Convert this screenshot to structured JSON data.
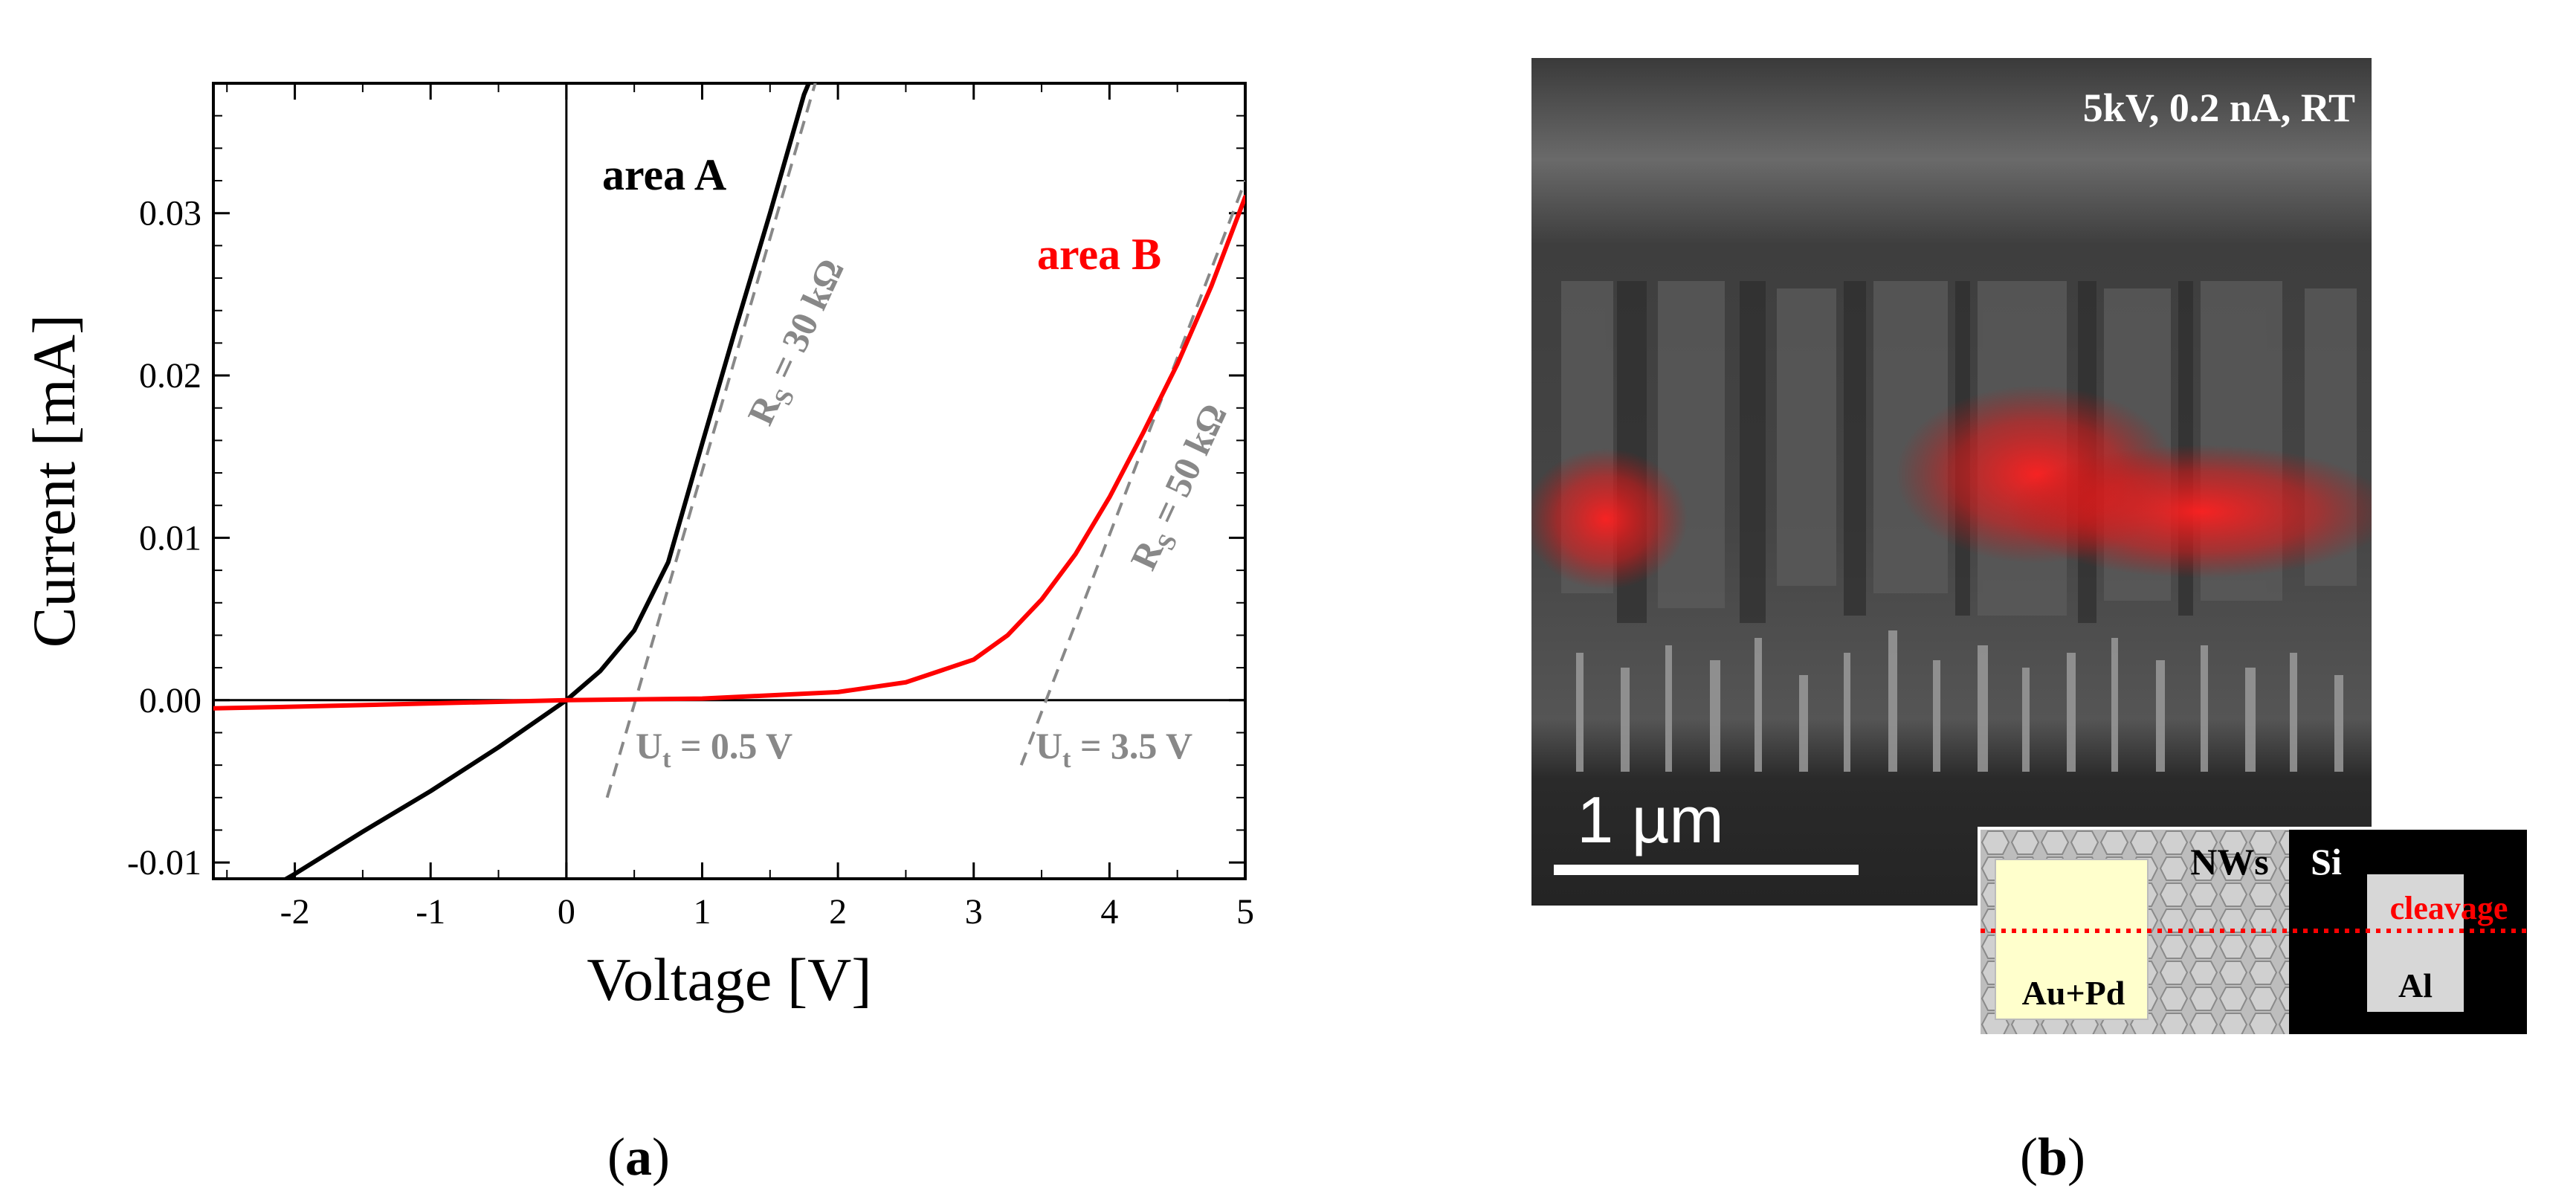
{
  "chart_data": {
    "type": "line",
    "xlabel": "Voltage [V]",
    "ylabel": "Current [mA]",
    "xlim": [
      -2.6,
      5.0
    ],
    "ylim": [
      -0.011,
      0.038
    ],
    "x_ticks": [
      -2,
      -1,
      0,
      1,
      2,
      3,
      4,
      5
    ],
    "y_ticks": [
      -0.01,
      0.0,
      0.01,
      0.02,
      0.03
    ],
    "x_tick_labels": [
      "-2",
      "-1",
      "0",
      "1",
      "2",
      "3",
      "4",
      "5"
    ],
    "y_tick_labels": [
      "-0.01",
      "0.00",
      "0.01",
      "0.02",
      "0.03"
    ],
    "series": [
      {
        "name": "area A",
        "color": "#000000",
        "x": [
          -2.6,
          -2.0,
          -1.5,
          -1.0,
          -0.5,
          0.0,
          0.25,
          0.5,
          0.75,
          1.0,
          1.25,
          1.5,
          1.75,
          1.8
        ],
        "y": [
          -0.0136,
          -0.0107,
          -0.0081,
          -0.0056,
          -0.0029,
          0.0,
          0.0018,
          0.0043,
          0.0085,
          0.0158,
          0.023,
          0.03,
          0.0373,
          0.0383
        ]
      },
      {
        "name": "area B",
        "color": "#ff0000",
        "x": [
          -2.6,
          -2.0,
          -1.0,
          0.0,
          1.0,
          2.0,
          2.5,
          3.0,
          3.25,
          3.5,
          3.75,
          4.0,
          4.25,
          4.5,
          4.75,
          5.0
        ],
        "y": [
          -0.0005,
          -0.0004,
          -0.0002,
          0.0,
          0.0001,
          0.0005,
          0.0011,
          0.0025,
          0.004,
          0.0062,
          0.009,
          0.0125,
          0.0165,
          0.0207,
          0.0255,
          0.031
        ]
      }
    ],
    "fit_lines": [
      {
        "label": "R_S = 30 kΩ",
        "x": [
          0.3,
          1.85
        ],
        "y": [
          -0.006,
          0.0385
        ],
        "color": "#888888"
      },
      {
        "label": "R_S = 50 kΩ",
        "x": [
          3.35,
          5.0
        ],
        "y": [
          -0.004,
          0.032
        ],
        "color": "#888888"
      }
    ],
    "annotations": [
      {
        "text": "area A",
        "color": "#000000"
      },
      {
        "text": "area B",
        "color": "#ff0000"
      },
      {
        "main": "R",
        "sub": "S",
        "rest": " = 30 kΩ",
        "color": "#888888"
      },
      {
        "main": "R",
        "sub": "S",
        "rest": " = 50 kΩ",
        "color": "#888888"
      },
      {
        "main": "U",
        "sub": "t",
        "rest": " = 0.5 V",
        "color": "#888888"
      },
      {
        "main": "U",
        "sub": "t",
        "rest": " = 3.5 V",
        "color": "#888888"
      }
    ]
  },
  "panels": {
    "a_label": "a",
    "b_label": "b"
  },
  "sem": {
    "conditions": "5kV, 0.2 nA, RT",
    "scale_bar": "1 µm",
    "schematic": {
      "nws": "NWs",
      "si": "Si",
      "cleavage": "cleavage",
      "aupd": "Au+Pd",
      "al": "Al"
    }
  }
}
